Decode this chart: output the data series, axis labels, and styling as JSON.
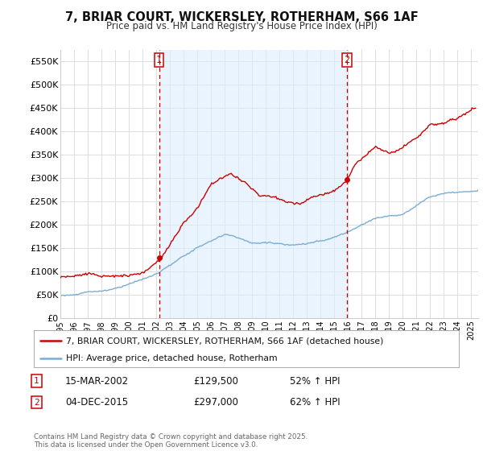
{
  "title": "7, BRIAR COURT, WICKERSLEY, ROTHERHAM, S66 1AF",
  "subtitle": "Price paid vs. HM Land Registry's House Price Index (HPI)",
  "ylabel_ticks": [
    "£0",
    "£50K",
    "£100K",
    "£150K",
    "£200K",
    "£250K",
    "£300K",
    "£350K",
    "£400K",
    "£450K",
    "£500K",
    "£550K"
  ],
  "ytick_values": [
    0,
    50000,
    100000,
    150000,
    200000,
    250000,
    300000,
    350000,
    400000,
    450000,
    500000,
    550000
  ],
  "ylim": [
    0,
    575000
  ],
  "xlim_start": 1995.0,
  "xlim_end": 2025.5,
  "vline1_x": 2002.21,
  "vline2_x": 2015.92,
  "legend_line1": "7, BRIAR COURT, WICKERSLEY, ROTHERHAM, S66 1AF (detached house)",
  "legend_line2": "HPI: Average price, detached house, Rotherham",
  "annotation1_date": "15-MAR-2002",
  "annotation1_price": "£129,500",
  "annotation1_hpi": "52% ↑ HPI",
  "annotation2_date": "04-DEC-2015",
  "annotation2_price": "£297,000",
  "annotation2_hpi": "62% ↑ HPI",
  "footer": "Contains HM Land Registry data © Crown copyright and database right 2025.\nThis data is licensed under the Open Government Licence v3.0.",
  "red_color": "#cc0000",
  "blue_color": "#7aadd4",
  "vline_color": "#cc0000",
  "bg_color": "#ffffff",
  "grid_color": "#dddddd",
  "shade_color": "#ddeeff",
  "purchase1_dot_x": 2002.21,
  "purchase1_dot_y": 129500,
  "purchase2_dot_x": 2015.92,
  "purchase2_dot_y": 297000,
  "hpi_segments_x": [
    1995.0,
    1996.0,
    1997.0,
    1998.0,
    1999.0,
    2000.0,
    2001.0,
    2002.0,
    2003.0,
    2004.0,
    2005.0,
    2006.0,
    2007.0,
    2008.0,
    2009.0,
    2010.0,
    2011.0,
    2012.0,
    2013.0,
    2014.0,
    2015.0,
    2016.0,
    2017.0,
    2018.0,
    2019.0,
    2020.0,
    2021.0,
    2022.0,
    2023.0,
    2024.0,
    2025.5
  ],
  "hpi_segments_y": [
    48000,
    50000,
    54000,
    58000,
    63000,
    70000,
    80000,
    92000,
    110000,
    130000,
    148000,
    162000,
    175000,
    168000,
    155000,
    157000,
    155000,
    152000,
    155000,
    162000,
    170000,
    182000,
    196000,
    210000,
    218000,
    220000,
    238000,
    258000,
    265000,
    268000,
    272000
  ],
  "red_segments_x": [
    1995.0,
    1996.0,
    1997.0,
    1998.0,
    1999.0,
    2000.0,
    2001.0,
    2002.21,
    2003.0,
    2004.0,
    2005.0,
    2006.0,
    2007.5,
    2008.5,
    2009.5,
    2010.5,
    2011.5,
    2012.5,
    2013.0,
    2014.0,
    2015.0,
    2015.92,
    2016.5,
    2017.5,
    2018.0,
    2019.0,
    2020.0,
    2021.0,
    2022.0,
    2023.0,
    2024.0,
    2025.3
  ],
  "red_segments_y": [
    88000,
    90000,
    92000,
    93000,
    95000,
    98000,
    105000,
    129500,
    165000,
    210000,
    240000,
    295000,
    315000,
    295000,
    265000,
    265000,
    250000,
    248000,
    258000,
    268000,
    278000,
    297000,
    335000,
    360000,
    375000,
    360000,
    370000,
    390000,
    420000,
    420000,
    430000,
    450000
  ]
}
